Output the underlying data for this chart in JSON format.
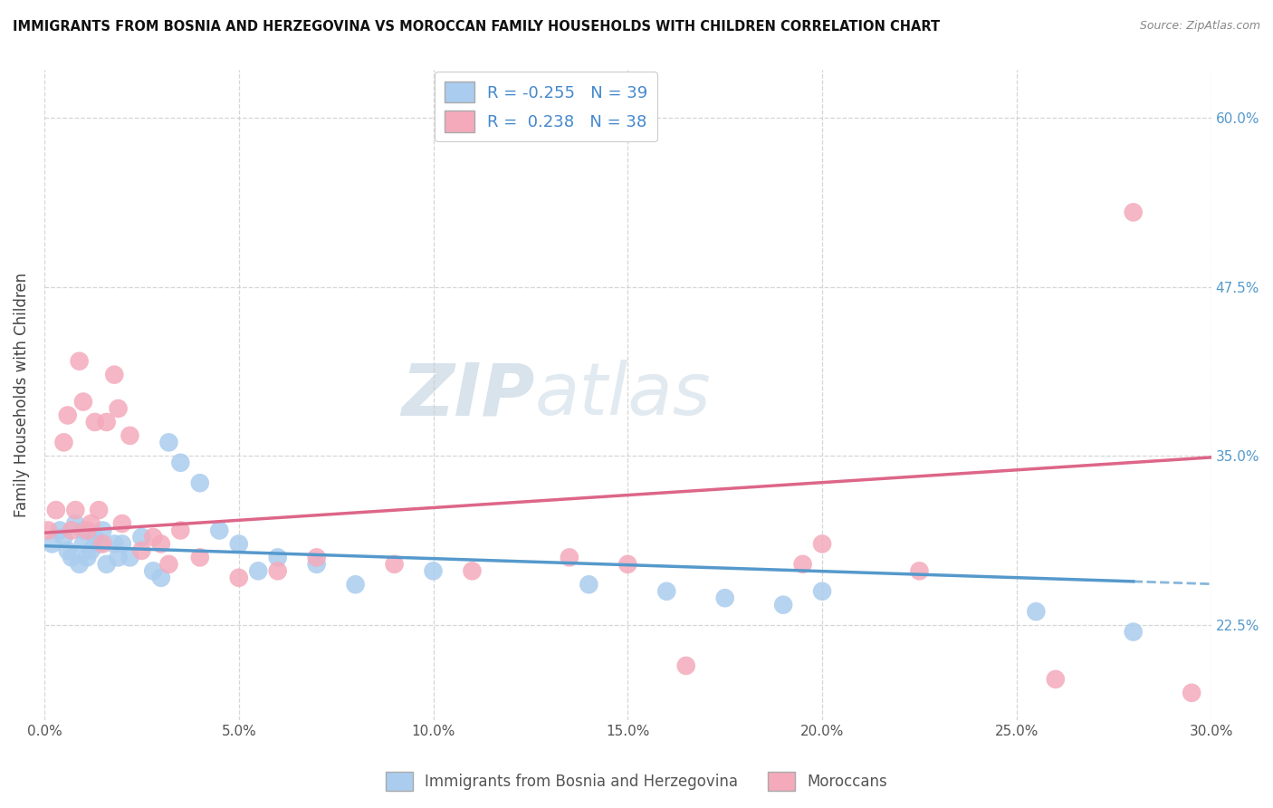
{
  "title": "IMMIGRANTS FROM BOSNIA AND HERZEGOVINA VS MOROCCAN FAMILY HOUSEHOLDS WITH CHILDREN CORRELATION CHART",
  "source": "Source: ZipAtlas.com",
  "ylabel": "Family Households with Children",
  "xlim": [
    0.0,
    0.3
  ],
  "ylim": [
    0.155,
    0.635
  ],
  "ytick_vals": [
    0.225,
    0.35,
    0.475,
    0.6
  ],
  "ytick_labels": [
    "22.5%",
    "35.0%",
    "47.5%",
    "60.0%"
  ],
  "xtick_vals": [
    0.0,
    0.05,
    0.1,
    0.15,
    0.2,
    0.25,
    0.3
  ],
  "legend_r_blue": "-0.255",
  "legend_n_blue": "39",
  "legend_r_pink": "0.238",
  "legend_n_pink": "38",
  "blue_color": "#aaccee",
  "pink_color": "#f4aabb",
  "line_blue_color": "#5599cc",
  "line_pink_color": "#dd6688",
  "watermark": "ZIPatlas",
  "blue_scatter_x": [
    0.002,
    0.004,
    0.005,
    0.006,
    0.007,
    0.008,
    0.009,
    0.01,
    0.01,
    0.011,
    0.012,
    0.013,
    0.014,
    0.015,
    0.016,
    0.018,
    0.019,
    0.02,
    0.022,
    0.025,
    0.028,
    0.03,
    0.032,
    0.035,
    0.04,
    0.045,
    0.05,
    0.055,
    0.06,
    0.07,
    0.08,
    0.1,
    0.14,
    0.16,
    0.175,
    0.19,
    0.2,
    0.255,
    0.28
  ],
  "blue_scatter_y": [
    0.285,
    0.295,
    0.29,
    0.28,
    0.275,
    0.3,
    0.27,
    0.285,
    0.295,
    0.275,
    0.28,
    0.29,
    0.285,
    0.295,
    0.27,
    0.285,
    0.275,
    0.285,
    0.275,
    0.29,
    0.265,
    0.26,
    0.36,
    0.345,
    0.33,
    0.295,
    0.285,
    0.265,
    0.275,
    0.27,
    0.255,
    0.265,
    0.255,
    0.25,
    0.245,
    0.24,
    0.25,
    0.235,
    0.22
  ],
  "pink_scatter_x": [
    0.001,
    0.003,
    0.005,
    0.006,
    0.007,
    0.008,
    0.009,
    0.01,
    0.011,
    0.012,
    0.013,
    0.014,
    0.015,
    0.016,
    0.018,
    0.019,
    0.02,
    0.022,
    0.025,
    0.028,
    0.03,
    0.032,
    0.035,
    0.04,
    0.05,
    0.06,
    0.07,
    0.09,
    0.11,
    0.135,
    0.15,
    0.165,
    0.195,
    0.2,
    0.225,
    0.26,
    0.28,
    0.295
  ],
  "pink_scatter_y": [
    0.295,
    0.31,
    0.36,
    0.38,
    0.295,
    0.31,
    0.42,
    0.39,
    0.295,
    0.3,
    0.375,
    0.31,
    0.285,
    0.375,
    0.41,
    0.385,
    0.3,
    0.365,
    0.28,
    0.29,
    0.285,
    0.27,
    0.295,
    0.275,
    0.26,
    0.265,
    0.275,
    0.27,
    0.265,
    0.275,
    0.27,
    0.195,
    0.27,
    0.285,
    0.265,
    0.185,
    0.53,
    0.175
  ],
  "background_color": "#ffffff",
  "grid_color": "#cccccc"
}
